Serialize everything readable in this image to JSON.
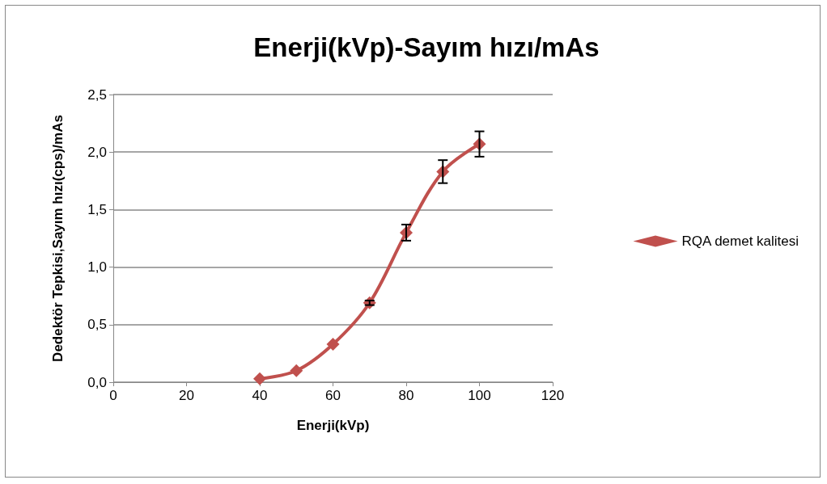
{
  "chart_data": {
    "type": "line",
    "title": "Enerji(kVp)-Sayım hızı/mAs",
    "xlabel": "Enerji(kVp)",
    "ylabel": "Dedektör Tepkisi,Sayım hızı(cps)/mAs",
    "x": [
      40,
      50,
      60,
      70,
      80,
      90,
      100
    ],
    "series": [
      {
        "name": "RQA demet kalitesi",
        "color": "#c0504d",
        "values": [
          0.03,
          0.1,
          0.33,
          0.69,
          1.3,
          1.83,
          2.07
        ],
        "errors": [
          null,
          null,
          null,
          0.02,
          0.07,
          0.1,
          0.11
        ]
      }
    ],
    "xlim": [
      0,
      120
    ],
    "xticks": [
      0,
      20,
      40,
      60,
      80,
      100,
      120
    ],
    "ylim": [
      0,
      2.5
    ],
    "yticks": [
      {
        "value": 0,
        "label": "0,0"
      },
      {
        "value": 0.5,
        "label": "0,5"
      },
      {
        "value": 1,
        "label": "1,0"
      },
      {
        "value": 1.5,
        "label": "1,5"
      },
      {
        "value": 2,
        "label": "2,0"
      },
      {
        "value": 2.5,
        "label": "2,5"
      }
    ],
    "grid": "y",
    "legend": "right",
    "marker": "diamond",
    "line_style": "solid"
  }
}
